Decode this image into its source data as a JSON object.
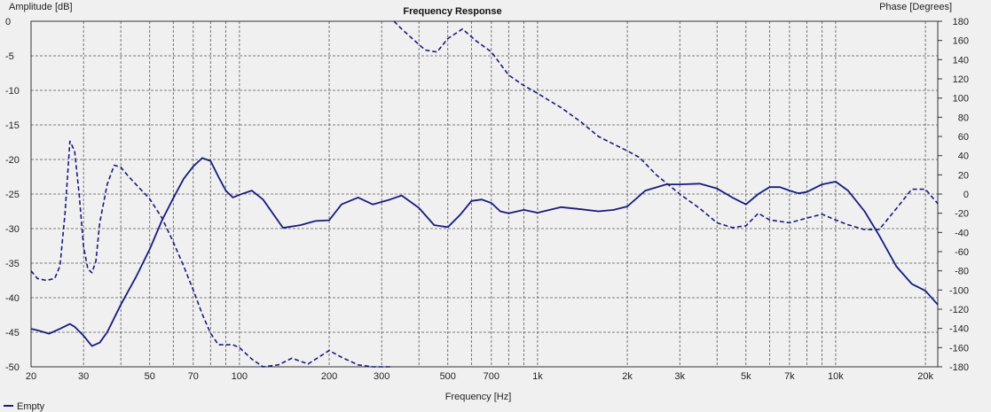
{
  "chart_data": {
    "type": "line",
    "title": "Frequency Response",
    "xlabel": "Frequency [Hz]",
    "ylabel_left": "Amplitude [dB]",
    "ylabel_right": "Phase [Degrees]",
    "x_scale": "log",
    "xlim": [
      20,
      22000
    ],
    "ylim_left": [
      -50,
      0
    ],
    "ylim_right": [
      -180,
      180
    ],
    "grid": true,
    "legend_position": "bottom-left",
    "x_ticks": [
      {
        "value": 20,
        "label": "20"
      },
      {
        "value": 30,
        "label": "30"
      },
      {
        "value": 50,
        "label": "50"
      },
      {
        "value": 70,
        "label": "70"
      },
      {
        "value": 100,
        "label": "100"
      },
      {
        "value": 200,
        "label": "200"
      },
      {
        "value": 300,
        "label": "300"
      },
      {
        "value": 500,
        "label": "500"
      },
      {
        "value": 700,
        "label": "700"
      },
      {
        "value": 1000,
        "label": "1k"
      },
      {
        "value": 2000,
        "label": "2k"
      },
      {
        "value": 3000,
        "label": "3k"
      },
      {
        "value": 5000,
        "label": "5k"
      },
      {
        "value": 7000,
        "label": "7k"
      },
      {
        "value": 10000,
        "label": "10k"
      },
      {
        "value": 20000,
        "label": "20k"
      }
    ],
    "y_left_ticks": [
      "0",
      "-5",
      "-10",
      "-15",
      "-20",
      "-25",
      "-30",
      "-35",
      "-40",
      "-45",
      "-50"
    ],
    "y_right_ticks": [
      "180",
      "160",
      "140",
      "120",
      "100",
      "80",
      "60",
      "40",
      "20",
      "0",
      "-20",
      "-40",
      "-60",
      "-80",
      "-100",
      "-120",
      "-140",
      "-160",
      "-180"
    ],
    "series": [
      {
        "name": "Empty",
        "axis": "left",
        "style": "solid",
        "color": "#1a1a80",
        "x": [
          20,
          21,
          23,
          25,
          27,
          28,
          30,
          32,
          34,
          36,
          40,
          45,
          50,
          55,
          60,
          65,
          70,
          75,
          80,
          85,
          90,
          95,
          100,
          110,
          120,
          140,
          160,
          180,
          200,
          220,
          250,
          280,
          320,
          350,
          400,
          450,
          500,
          550,
          600,
          650,
          700,
          750,
          800,
          900,
          1000,
          1200,
          1400,
          1600,
          1800,
          2000,
          2300,
          2700,
          3000,
          3500,
          4000,
          4500,
          5000,
          5500,
          6000,
          6500,
          7000,
          7500,
          8000,
          9000,
          10000,
          11000,
          12500,
          14000,
          16000,
          18000,
          20000,
          22000
        ],
        "y": [
          -44.5,
          -44.7,
          -45.2,
          -44.5,
          -43.8,
          -44.2,
          -45.5,
          -47,
          -46.5,
          -45,
          -41,
          -37,
          -33,
          -28.8,
          -25.6,
          -22.8,
          -21,
          -19.8,
          -20.2,
          -22.5,
          -24.5,
          -25.5,
          -25.1,
          -24.5,
          -25.8,
          -29.9,
          -29.5,
          -28.9,
          -28.8,
          -26.5,
          -25.5,
          -26.5,
          -25.8,
          -25.2,
          -27,
          -29.5,
          -29.8,
          -28,
          -26,
          -25.8,
          -26.3,
          -27.5,
          -27.8,
          -27.3,
          -27.7,
          -26.9,
          -27.2,
          -27.5,
          -27.3,
          -26.8,
          -24.5,
          -23.6,
          -23.6,
          -23.5,
          -24.2,
          -25.5,
          -26.5,
          -25,
          -24,
          -24,
          -24.5,
          -24.9,
          -24.7,
          -23.6,
          -23.2,
          -24.5,
          -27.5,
          -31,
          -35.5,
          -38,
          -39,
          -41
        ]
      },
      {
        "name": "Phase",
        "axis": "right",
        "style": "dashed",
        "color": "#1a1a80",
        "segments": [
          {
            "x": [
              20,
              21,
              22.5,
              24,
              25,
              26,
              27,
              28,
              29,
              30,
              31,
              32,
              33,
              34,
              36,
              38,
              40,
              42,
              45,
              50,
              55,
              60,
              65,
              70,
              75,
              80,
              85,
              90,
              95,
              100,
              110,
              120,
              135,
              150,
              170,
              200,
              220,
              250,
              280,
              300,
              320
            ],
            "y": [
              -80,
              -88,
              -90,
              -88,
              -75,
              -20,
              55,
              45,
              0,
              -55,
              -78,
              -82,
              -70,
              -30,
              10,
              30,
              28,
              20,
              10,
              -5,
              -25,
              -50,
              -75,
              -100,
              -125,
              -145,
              -157,
              -157,
              -157,
              -160,
              -172,
              -180,
              -178,
              -171,
              -177,
              -163,
              -170,
              -178,
              -180,
              -180,
              -182
            ]
          },
          {
            "x": [
              330,
              350,
              380,
              420,
              460,
              500,
              560,
              620,
              700,
              800,
              900,
              1000,
              1100,
              1200,
              1400,
              1600,
              1800,
              2000,
              2200,
              2500,
              3000,
              3500,
              4000,
              4500,
              5000,
              5500,
              6000,
              7000,
              8000,
              9000,
              10000,
              11000,
              12500,
              14000,
              16000,
              18000,
              20000,
              22000
            ],
            "y": [
              180,
              172,
              162,
              150,
              148,
              162,
              172,
              160,
              148,
              124,
              113,
              105,
              97,
              90,
              75,
              60,
              52,
              45,
              38,
              20,
              0,
              -15,
              -30,
              -35,
              -33,
              -20,
              -27,
              -30,
              -25,
              -21,
              -27,
              -32,
              -37,
              -37,
              -15,
              5,
              5,
              -10
            ]
          }
        ]
      }
    ]
  }
}
